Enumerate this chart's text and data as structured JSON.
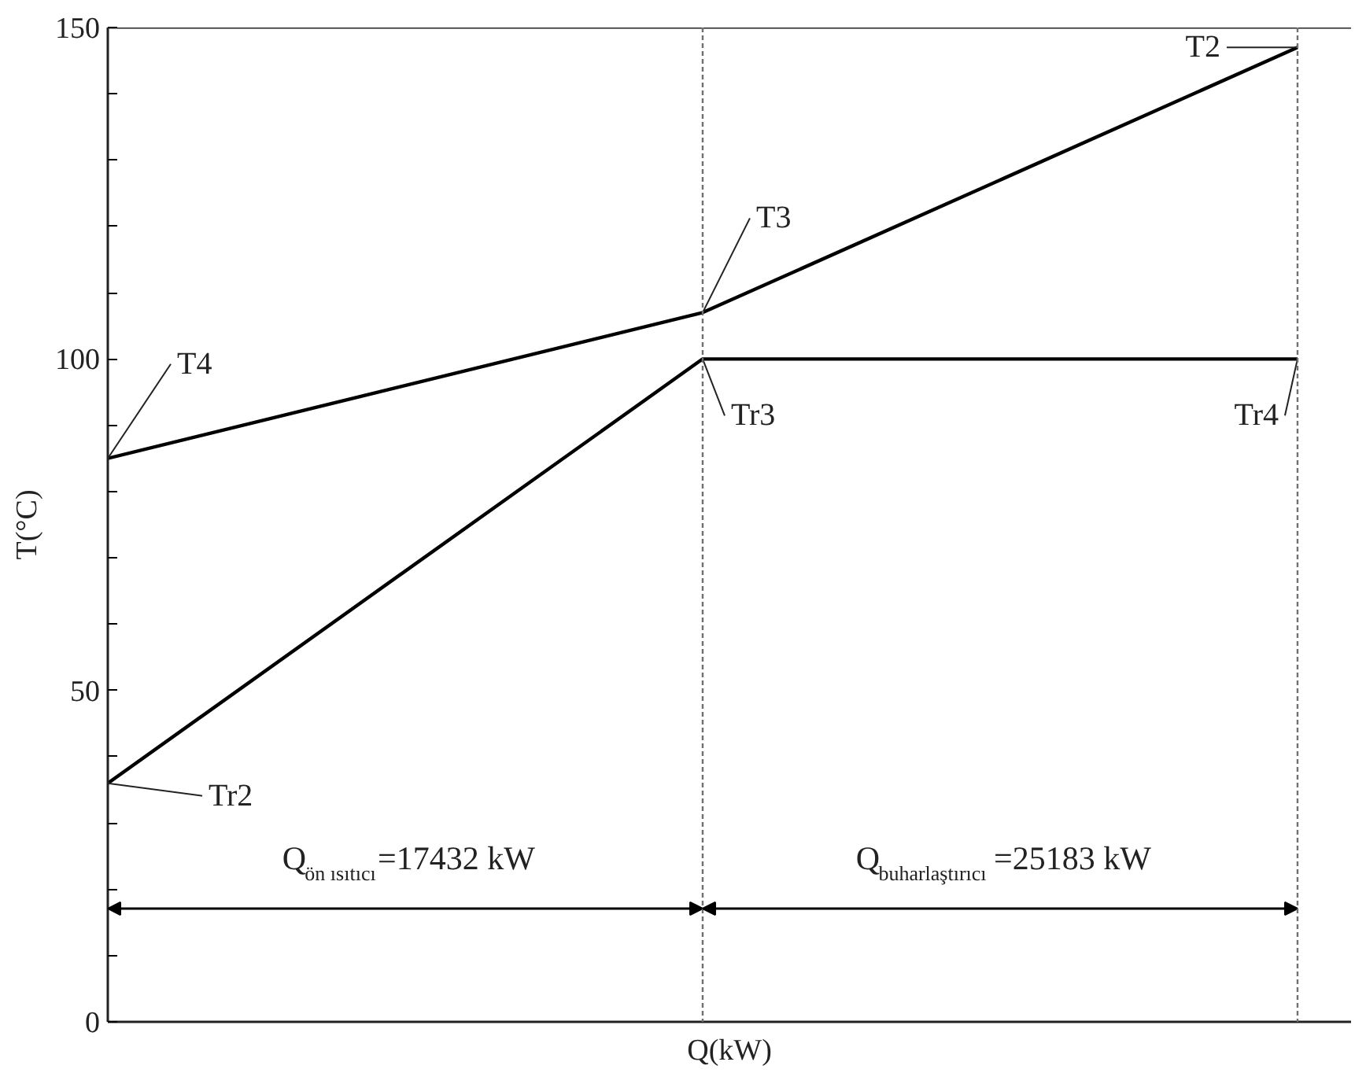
{
  "chart_data": {
    "type": "line",
    "xlabel": "Q(kW)",
    "ylabel": "T(°C)",
    "categories": [
      null,
      null,
      null
    ],
    "series": [
      {
        "color": "#000000",
        "values": [
          85,
          107,
          147
        ]
      },
      {
        "color": "#000000",
        "values": [
          36,
          100,
          100
        ]
      }
    ],
    "ylim": [
      0,
      150
    ],
    "yticks": [
      0,
      {
        "value": 10,
        "label": null
      },
      {
        "value": 20,
        "label": null
      },
      {
        "value": 30,
        "label": null
      },
      {
        "value": 40,
        "label": null
      },
      50,
      {
        "value": 60,
        "label": null
      },
      {
        "value": 70,
        "label": null
      },
      {
        "value": 80,
        "label": null
      },
      {
        "value": 90,
        "label": null
      },
      100,
      {
        "value": 110,
        "label": null
      },
      {
        "value": 120,
        "label": null
      },
      {
        "value": 130,
        "label": null
      },
      {
        "value": 140,
        "label": null
      },
      150
    ],
    "tick_labels": "y",
    "marker": "none",
    "line_style": "solid",
    "annotations": [
      "T4",
      "T3",
      "T2",
      "Tr2",
      "Tr3",
      "Tr4",
      "Q$_{ön ısıtıcı}$=17432 kW",
      "Q$_{buharlaştırıcı}$=25183 kW"
    ]
  }
}
